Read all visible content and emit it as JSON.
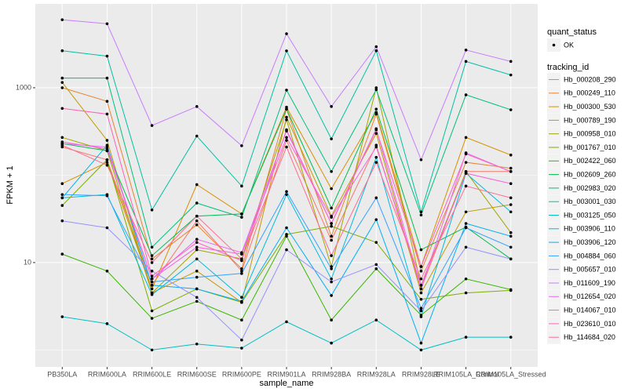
{
  "chart_data": {
    "type": "line",
    "log_y": true,
    "grid": true,
    "legend_position": "right",
    "xlabel": "sample_name",
    "ylabel": "FPKM + 1",
    "status_legend_title": "quant_status",
    "status_labels": [
      "OK"
    ],
    "point_color": "#000000",
    "legend_title": "tracking_id",
    "categories": [
      "PB350LA",
      "RRIM600LA",
      "RRIM600LE",
      "RRIM600SE",
      "RRIM600PE",
      "RRIM901LA",
      "RRIM928BA",
      "RRIM928LA",
      "RRIM928LE",
      "RRIM105LA_Control",
      "RRIM105LA_Stressed"
    ],
    "ylim": [
      0.64,
      9100
    ],
    "yticks": [
      10,
      1000
    ],
    "series": [
      {
        "name": "Hb_000208_290",
        "color": "#F8766D",
        "values": [
          210,
          150,
          5.5,
          30,
          8,
          250,
          18,
          220,
          5,
          110,
          110
        ]
      },
      {
        "name": "Hb_000249_110",
        "color": "#EA8331",
        "values": [
          1000,
          700,
          11,
          27,
          8.5,
          570,
          20,
          500,
          8,
          140,
          120
        ]
      },
      {
        "name": "Hb_000300_530",
        "color": "#D89000",
        "values": [
          80,
          140,
          5,
          78,
          36,
          600,
          70,
          520,
          9,
          270,
          170
        ]
      },
      {
        "name": "Hb_000789_190",
        "color": "#C09B00",
        "values": [
          1150,
          250,
          4.5,
          8,
          3.5,
          460,
          34,
          300,
          4.5,
          38,
          46
        ]
      },
      {
        "name": "Hb_000958_010",
        "color": "#A3A500",
        "values": [
          270,
          190,
          4.5,
          14,
          11,
          430,
          9,
          1000,
          5.5,
          110,
          22
        ]
      },
      {
        "name": "Hb_001767_010",
        "color": "#7CAE00",
        "values": [
          45,
          150,
          2.8,
          5,
          3.5,
          21,
          26,
          17,
          3.8,
          4.5,
          4.8
        ]
      },
      {
        "name": "Hb_002422_060",
        "color": "#39B600",
        "values": [
          12.5,
          8,
          2.3,
          3.6,
          2.2,
          20,
          2.2,
          8.5,
          2.5,
          6.5,
          4.9
        ]
      },
      {
        "name": "Hb_002609_260",
        "color": "#00BB4E",
        "values": [
          230,
          190,
          12,
          34,
          36,
          570,
          42,
          570,
          14,
          25.5,
          11
        ]
      },
      {
        "name": "Hb_002983_020",
        "color": "#00BF7D",
        "values": [
          1290,
          1290,
          15,
          48,
          33,
          940,
          110,
          950,
          35,
          830,
          560
        ]
      },
      {
        "name": "Hb_003001_030",
        "color": "#00C1A3",
        "values": [
          2650,
          2300,
          40,
          280,
          75,
          2640,
          260,
          2650,
          38,
          2000,
          1400
        ]
      },
      {
        "name": "Hb_003125_050",
        "color": "#00BFC4",
        "values": [
          2.4,
          2.0,
          1.0,
          1.17,
          1.05,
          2.1,
          1.2,
          2.2,
          1.0,
          1.4,
          1.4
        ]
      },
      {
        "name": "Hb_003906_110",
        "color": "#00BAE0",
        "values": [
          55,
          60,
          4.3,
          11,
          4.0,
          60,
          6.5,
          160,
          2.4,
          105,
          38
        ]
      },
      {
        "name": "Hb_003906_120",
        "color": "#00B0F6",
        "values": [
          55,
          220,
          5.5,
          5,
          3.6,
          25,
          4.2,
          31,
          1.2,
          28,
          20
        ]
      },
      {
        "name": "Hb_004884_060",
        "color": "#35A2FF",
        "values": [
          60,
          58,
          6,
          6.8,
          7.5,
          65,
          8.5,
          55,
          3,
          25,
          15
        ]
      },
      {
        "name": "Hb_005657_010",
        "color": "#9590FF",
        "values": [
          30,
          25,
          8,
          4,
          1.3,
          14,
          6,
          9.5,
          2.8,
          15,
          11
        ]
      },
      {
        "name": "Hb_011609_190",
        "color": "#C77CFF",
        "values": [
          6000,
          5400,
          370,
          610,
          217,
          4150,
          610,
          2950,
          150,
          2700,
          2000
        ]
      },
      {
        "name": "Hb_012654_020",
        "color": "#E76BF3",
        "values": [
          230,
          210,
          6.5,
          18.5,
          13,
          320,
          28,
          340,
          5,
          180,
          110
        ]
      },
      {
        "name": "Hb_014067_010",
        "color": "#FA62DB",
        "values": [
          240,
          200,
          6.5,
          15,
          12.5,
          270,
          33,
          210,
          5.5,
          105,
          80
        ]
      },
      {
        "name": "Hb_023610_010",
        "color": "#FF62BC",
        "values": [
          580,
          500,
          7,
          17,
          10.5,
          330,
          28,
          330,
          9,
          175,
          110
        ]
      },
      {
        "name": "Hb_114684_020",
        "color": "#FF6C91",
        "values": [
          220,
          130,
          10,
          34,
          11,
          210,
          12,
          140,
          6.5,
          75,
          55
        ]
      }
    ]
  }
}
